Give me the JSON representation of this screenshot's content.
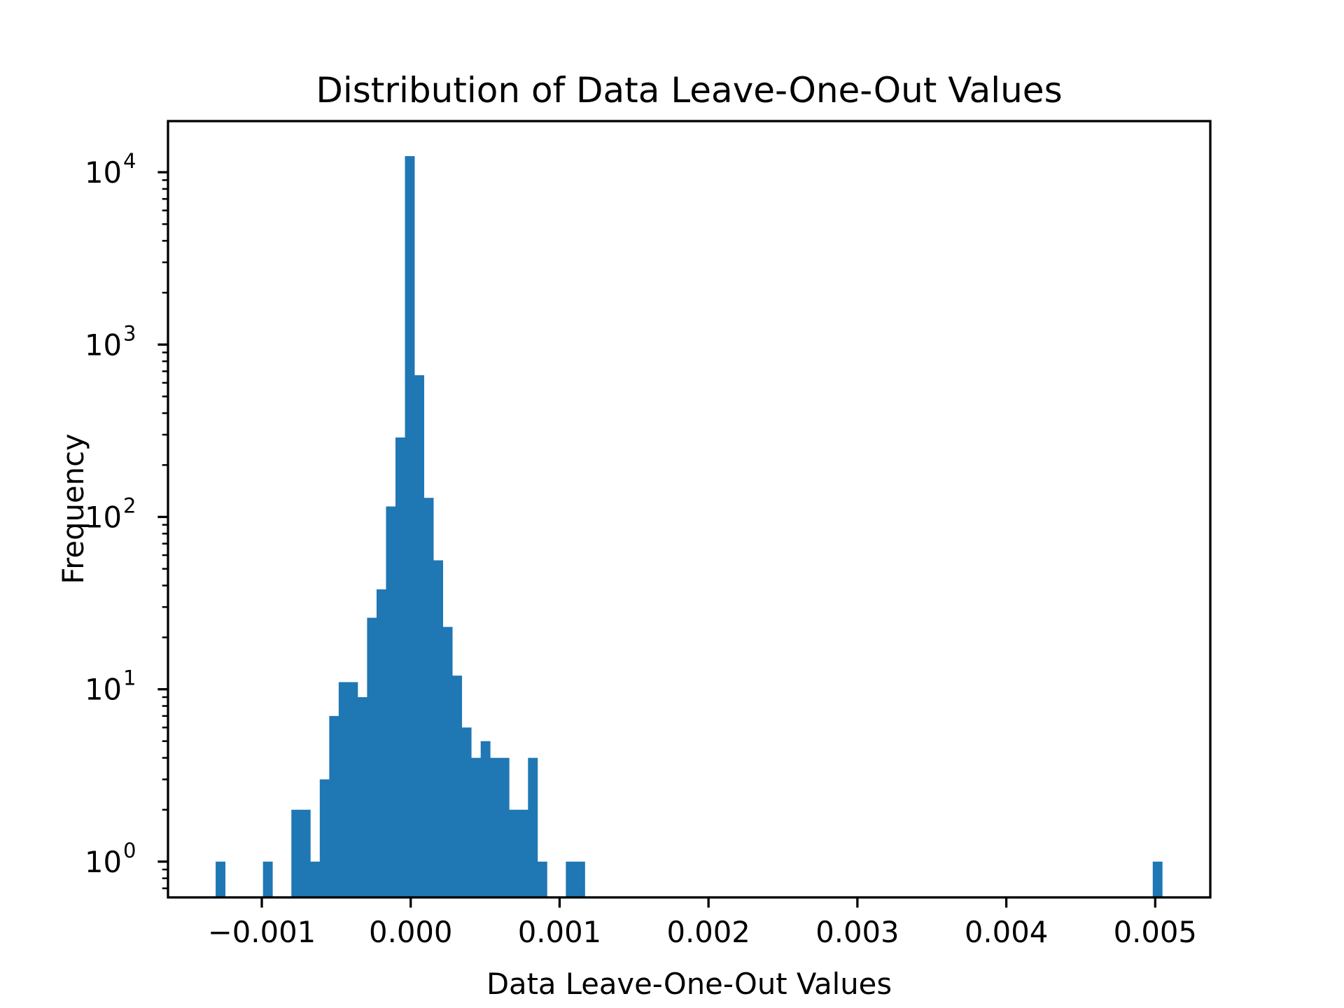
{
  "chart_data": {
    "type": "bar",
    "subtype": "histogram",
    "title": "Distribution of Data Leave-One-Out Values",
    "xlabel": "Data Leave-One-Out Values",
    "ylabel": "Frequency",
    "yscale": "log",
    "xlim": [
      -0.00163,
      0.00537
    ],
    "ylim": [
      0.62,
      19800
    ],
    "grid": false,
    "legend": null,
    "bar_color": "#1f77b4",
    "xticks": [
      {
        "value": -0.001,
        "label": "−0.001"
      },
      {
        "value": 0.0,
        "label": "0.000"
      },
      {
        "value": 0.001,
        "label": "0.001"
      },
      {
        "value": 0.002,
        "label": "0.002"
      },
      {
        "value": 0.003,
        "label": "0.003"
      },
      {
        "value": 0.004,
        "label": "0.004"
      },
      {
        "value": 0.005,
        "label": "0.005"
      }
    ],
    "yticks": [
      {
        "value": 1,
        "base": "10",
        "exp": "0"
      },
      {
        "value": 10,
        "base": "10",
        "exp": "1"
      },
      {
        "value": 100,
        "base": "10",
        "exp": "2"
      },
      {
        "value": 1000,
        "base": "10",
        "exp": "3"
      },
      {
        "value": 10000,
        "base": "10",
        "exp": "4"
      }
    ],
    "bins": {
      "count": 100,
      "start": -0.00131,
      "width": 6.357e-05
    },
    "nonzero_bins": [
      {
        "bin": 0,
        "x_left": -0.00131,
        "count": 1
      },
      {
        "bin": 5,
        "x_left": -0.000992,
        "count": 1
      },
      {
        "bin": 8,
        "x_left": -0.000801,
        "count": 2
      },
      {
        "bin": 9,
        "x_left": -0.000738,
        "count": 2
      },
      {
        "bin": 10,
        "x_left": -0.000674,
        "count": 1
      },
      {
        "bin": 11,
        "x_left": -0.000611,
        "count": 3
      },
      {
        "bin": 12,
        "x_left": -0.000547,
        "count": 7
      },
      {
        "bin": 13,
        "x_left": -0.000484,
        "count": 11
      },
      {
        "bin": 14,
        "x_left": -0.00042,
        "count": 11
      },
      {
        "bin": 15,
        "x_left": -0.000356,
        "count": 9
      },
      {
        "bin": 16,
        "x_left": -0.000293,
        "count": 26
      },
      {
        "bin": 17,
        "x_left": -0.000229,
        "count": 38
      },
      {
        "bin": 18,
        "x_left": -0.000166,
        "count": 115
      },
      {
        "bin": 19,
        "x_left": -0.000102,
        "count": 289
      },
      {
        "bin": 20,
        "x_left": -3.9e-05,
        "count": 12400
      },
      {
        "bin": 21,
        "x_left": 2.5e-05,
        "count": 664
      },
      {
        "bin": 22,
        "x_left": 8.9e-05,
        "count": 129
      },
      {
        "bin": 23,
        "x_left": 0.000152,
        "count": 56
      },
      {
        "bin": 24,
        "x_left": 0.000216,
        "count": 23
      },
      {
        "bin": 25,
        "x_left": 0.000279,
        "count": 12
      },
      {
        "bin": 26,
        "x_left": 0.000343,
        "count": 6
      },
      {
        "bin": 27,
        "x_left": 0.000406,
        "count": 4
      },
      {
        "bin": 28,
        "x_left": 0.00047,
        "count": 5
      },
      {
        "bin": 29,
        "x_left": 0.000534,
        "count": 4
      },
      {
        "bin": 30,
        "x_left": 0.000597,
        "count": 4
      },
      {
        "bin": 31,
        "x_left": 0.000661,
        "count": 2
      },
      {
        "bin": 32,
        "x_left": 0.000724,
        "count": 2
      },
      {
        "bin": 33,
        "x_left": 0.000788,
        "count": 4
      },
      {
        "bin": 34,
        "x_left": 0.000851,
        "count": 1
      },
      {
        "bin": 37,
        "x_left": 0.001042,
        "count": 1
      },
      {
        "bin": 38,
        "x_left": 0.001106,
        "count": 1
      },
      {
        "bin": 99,
        "x_left": 0.004983,
        "count": 1
      }
    ]
  }
}
